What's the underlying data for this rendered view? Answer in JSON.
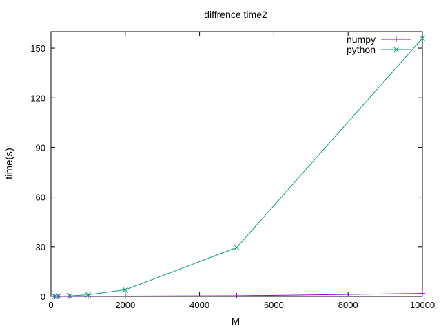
{
  "chart_data": {
    "type": "line",
    "title": "diffrence time2",
    "xlabel": "M",
    "ylabel": "time(s)",
    "xlim": [
      0,
      10000
    ],
    "ylim": [
      0,
      160
    ],
    "xticks": [
      0,
      2000,
      4000,
      6000,
      8000,
      10000
    ],
    "yticks": [
      0,
      30,
      60,
      90,
      120,
      150
    ],
    "grid": false,
    "legend_position": "top-right",
    "series": [
      {
        "name": "numpy",
        "color": "#9400d3",
        "marker": "plus",
        "x": [
          100,
          200,
          500,
          1000,
          2000,
          5000,
          10000
        ],
        "y": [
          0.01,
          0.02,
          0.05,
          0.1,
          0.2,
          0.4,
          1.8
        ]
      },
      {
        "name": "python",
        "color": "#009e73",
        "marker": "cross",
        "x": [
          100,
          200,
          500,
          1000,
          2000,
          5000,
          10000
        ],
        "y": [
          0.06,
          0.2,
          0.3,
          1.0,
          4.0,
          29.5,
          156.0
        ]
      }
    ]
  }
}
